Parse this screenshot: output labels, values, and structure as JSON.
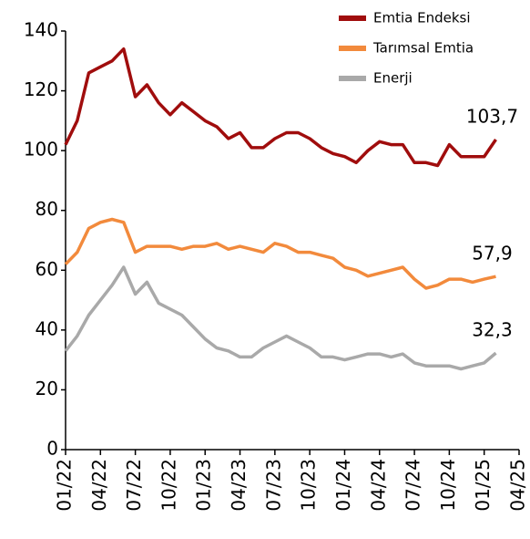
{
  "chart_data": {
    "type": "line",
    "categories": [
      "01/22",
      null,
      null,
      "04/22",
      null,
      null,
      "07/22",
      null,
      null,
      "10/22",
      null,
      null,
      "01/23",
      null,
      null,
      "04/23",
      null,
      null,
      "07/23",
      null,
      null,
      "10/23",
      null,
      null,
      "01/24",
      null,
      null,
      "04/24",
      null,
      null,
      "07/24",
      null,
      null,
      "10/24",
      null,
      null,
      "01/25",
      null,
      null,
      "04/25"
    ],
    "series": [
      {
        "name": "Emtia Endeksi",
        "color": "#a00d0d",
        "values": [
          102,
          110,
          126,
          128,
          130,
          134,
          118,
          122,
          116,
          112,
          116,
          113,
          110,
          108,
          104,
          106,
          101,
          101,
          104,
          106,
          106,
          104,
          101,
          99,
          98,
          96,
          100,
          103,
          102,
          102,
          96,
          96,
          95,
          102,
          98,
          98,
          98,
          103.7,
          null,
          null
        ],
        "value_labels": [
          null,
          null,
          null,
          null,
          null,
          null,
          null,
          null,
          null,
          null,
          null,
          null,
          null,
          null,
          null,
          null,
          null,
          null,
          null,
          null,
          null,
          null,
          null,
          null,
          null,
          null,
          null,
          null,
          null,
          null,
          null,
          null,
          null,
          null,
          null,
          null,
          null,
          "103,7",
          null,
          null
        ]
      },
      {
        "name": "Tarımsal Emtia",
        "color": "#f28a3c",
        "values": [
          62,
          66,
          74,
          76,
          77,
          76,
          66,
          68,
          68,
          68,
          67,
          68,
          68,
          69,
          67,
          68,
          67,
          66,
          69,
          68,
          66,
          66,
          65,
          64,
          61,
          60,
          58,
          59,
          60,
          61,
          57,
          54,
          55,
          57,
          57,
          56,
          57,
          57.9,
          null,
          null
        ],
        "value_labels": [
          null,
          null,
          null,
          null,
          null,
          null,
          null,
          null,
          null,
          null,
          null,
          null,
          null,
          null,
          null,
          null,
          null,
          null,
          null,
          null,
          null,
          null,
          null,
          null,
          null,
          null,
          null,
          null,
          null,
          null,
          null,
          null,
          null,
          null,
          null,
          null,
          null,
          "57,9",
          null,
          null
        ]
      },
      {
        "name": "Enerji",
        "color": "#a9a9a9",
        "values": [
          33,
          38,
          45,
          50,
          55,
          61,
          52,
          56,
          49,
          47,
          45,
          41,
          37,
          34,
          33,
          31,
          31,
          34,
          36,
          38,
          36,
          34,
          31,
          31,
          30,
          31,
          32,
          32,
          31,
          32,
          29,
          28,
          28,
          28,
          27,
          28,
          29,
          32.3,
          null,
          null
        ],
        "value_labels": [
          null,
          null,
          null,
          null,
          null,
          null,
          null,
          null,
          null,
          null,
          null,
          null,
          null,
          null,
          null,
          null,
          null,
          null,
          null,
          null,
          null,
          null,
          null,
          null,
          null,
          null,
          null,
          null,
          null,
          null,
          null,
          null,
          null,
          null,
          null,
          null,
          null,
          "32,3",
          null,
          null
        ]
      }
    ],
    "ylim": [
      0,
      140
    ],
    "yticks": [
      0,
      20,
      40,
      60,
      80,
      100,
      120,
      140
    ],
    "grid": false,
    "legend": "top-right"
  }
}
